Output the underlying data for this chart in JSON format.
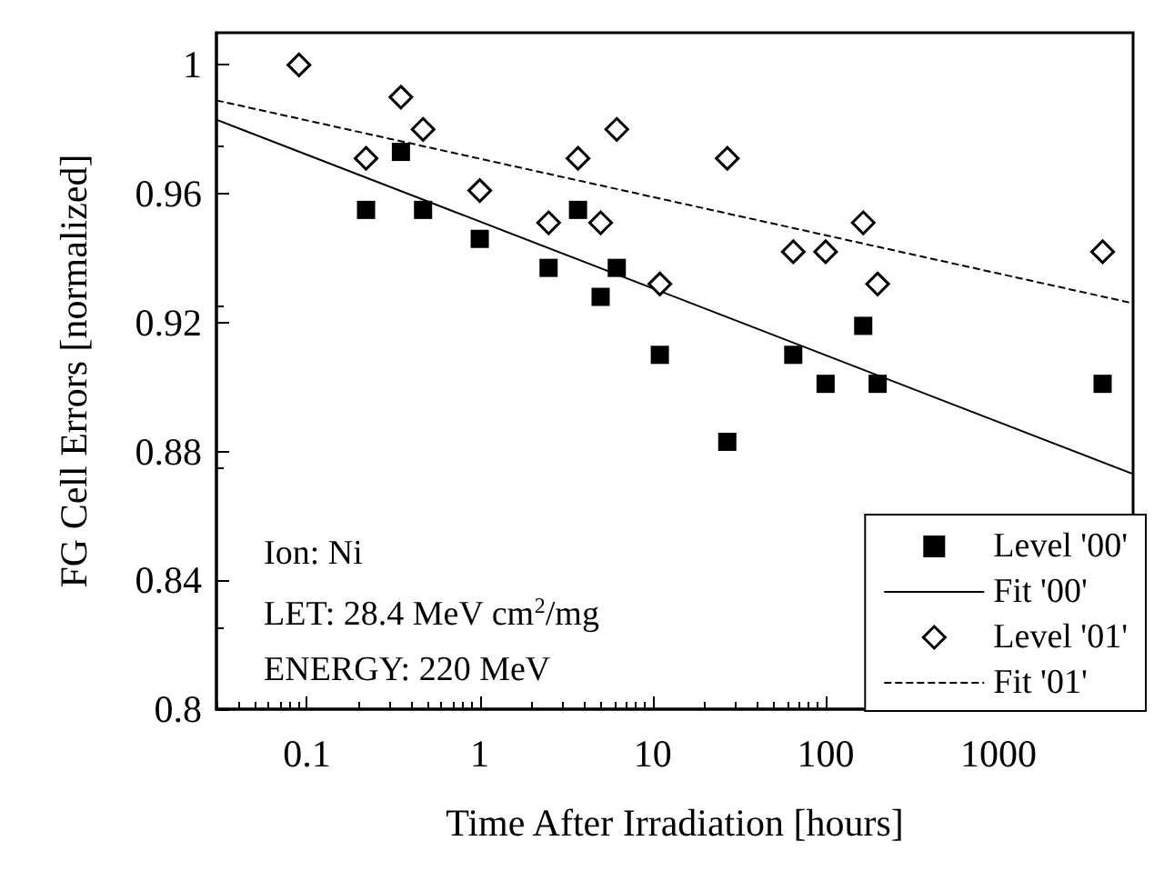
{
  "chart_data": {
    "type": "scatter",
    "xlabel": "Time After Irradiation [hours]",
    "ylabel": "FG Cell Errors [normalized]",
    "log": "x",
    "xlim": [
      0.03,
      6000
    ],
    "xticks": [
      0.1,
      1,
      10,
      100,
      1000
    ],
    "ylim": [
      0.8,
      1.01
    ],
    "yticks": [
      0.8,
      0.84,
      0.88,
      0.92,
      0.96,
      1
    ],
    "grid": false,
    "legend": "bottom right",
    "annotations": [
      "Ion: Ni",
      "LET: 28.4 MeV cm$^{2}$/mg",
      "ENERGY: 220 MeV"
    ],
    "series": [
      {
        "name": "Level '00'",
        "type": "scatter",
        "marker": "square",
        "color": "#000000",
        "x": [
          0.22,
          0.35,
          0.47,
          1.0,
          2.5,
          3.7,
          5.0,
          6.2,
          11,
          27,
          65,
          100,
          165,
          200,
          4000
        ],
        "values": [
          0.955,
          0.973,
          0.955,
          0.946,
          0.937,
          0.955,
          0.928,
          0.937,
          0.91,
          0.883,
          0.91,
          0.901,
          0.919,
          0.901,
          0.901
        ]
      },
      {
        "name": "Fit '00'",
        "type": "line",
        "marker": "none",
        "line_style": "solid",
        "color": "#000000",
        "x": [
          0.03,
          6000
        ],
        "values": [
          0.983,
          0.873
        ]
      },
      {
        "name": "Level '01'",
        "type": "scatter",
        "marker": "diamond",
        "color": "#000000",
        "x": [
          0.09,
          0.22,
          0.35,
          0.47,
          1.0,
          2.5,
          3.7,
          5.0,
          6.2,
          11,
          27,
          65,
          100,
          165,
          200,
          4000
        ],
        "values": [
          1.0,
          0.971,
          0.99,
          0.98,
          0.961,
          0.951,
          0.971,
          0.951,
          0.98,
          0.932,
          0.971,
          0.942,
          0.942,
          0.951,
          0.932,
          0.942
        ]
      },
      {
        "name": "Fit '01'",
        "type": "line",
        "marker": "none",
        "line_style": "dashed",
        "color": "#000000",
        "x": [
          0.03,
          6000
        ],
        "values": [
          0.989,
          0.926
        ]
      }
    ]
  }
}
